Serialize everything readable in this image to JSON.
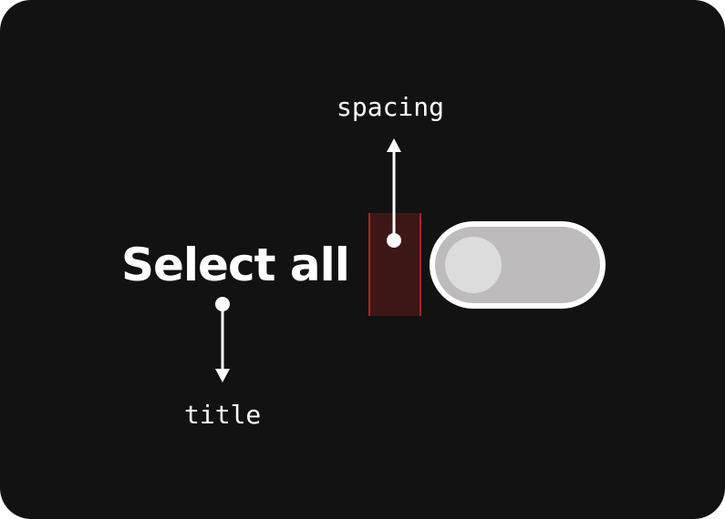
{
  "component": {
    "title": "Select all",
    "toggle_state": "off"
  },
  "annotations": {
    "spacing_label": "spacing",
    "title_label": "title"
  },
  "colors": {
    "background": "#121212",
    "text": "#ffffff",
    "spacing_fill": "#3d1716",
    "spacing_border": "#a02a26",
    "toggle_track": "#bdbbbb",
    "toggle_border": "#ffffff",
    "toggle_knob": "#dcdcdc"
  }
}
